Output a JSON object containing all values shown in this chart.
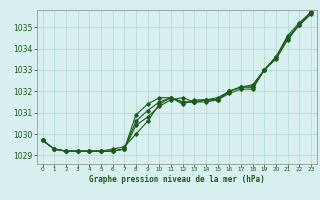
{
  "title": "Graphe pression niveau de la mer (hPa)",
  "xlabel_ticks": [
    0,
    1,
    2,
    3,
    4,
    5,
    6,
    7,
    8,
    9,
    10,
    11,
    12,
    13,
    14,
    15,
    16,
    17,
    18,
    19,
    20,
    21,
    22,
    23
  ],
  "ylim": [
    1028.6,
    1035.8
  ],
  "xlim": [
    -0.5,
    23.5
  ],
  "yticks": [
    1029,
    1030,
    1031,
    1032,
    1033,
    1034,
    1035
  ],
  "background_color": "#d8f0f0",
  "grid_color": "#b0d8d0",
  "line_color": "#1a5c1a",
  "line1": [
    1029.7,
    1029.3,
    1029.2,
    1029.2,
    1029.2,
    1029.2,
    1029.2,
    1029.3,
    1030.4,
    1030.8,
    1031.3,
    1031.6,
    1031.7,
    1031.5,
    1031.5,
    1031.6,
    1031.9,
    1032.1,
    1032.1,
    1033.0,
    1033.5,
    1034.4,
    1035.1,
    1035.6
  ],
  "line2": [
    1029.7,
    1029.3,
    1029.2,
    1029.2,
    1029.2,
    1029.2,
    1029.2,
    1029.3,
    1030.9,
    1031.4,
    1031.7,
    1031.7,
    1031.5,
    1031.5,
    1031.6,
    1031.6,
    1032.0,
    1032.2,
    1032.2,
    1033.0,
    1033.6,
    1034.5,
    1035.1,
    1035.7
  ],
  "line3": [
    1029.7,
    1029.3,
    1029.2,
    1029.2,
    1029.2,
    1029.2,
    1029.2,
    1029.3,
    1030.6,
    1031.1,
    1031.5,
    1031.7,
    1031.5,
    1031.5,
    1031.6,
    1031.6,
    1032.0,
    1032.2,
    1032.2,
    1033.0,
    1033.6,
    1034.5,
    1035.1,
    1035.7
  ],
  "line4": [
    1029.7,
    1029.3,
    1029.2,
    1029.2,
    1029.2,
    1029.2,
    1029.3,
    1029.4,
    1030.0,
    1030.6,
    1031.4,
    1031.7,
    1031.4,
    1031.6,
    1031.6,
    1031.7,
    1032.0,
    1032.2,
    1032.3,
    1033.0,
    1033.6,
    1034.6,
    1035.2,
    1035.7
  ],
  "fig_width": 3.2,
  "fig_height": 2.0,
  "dpi": 100
}
